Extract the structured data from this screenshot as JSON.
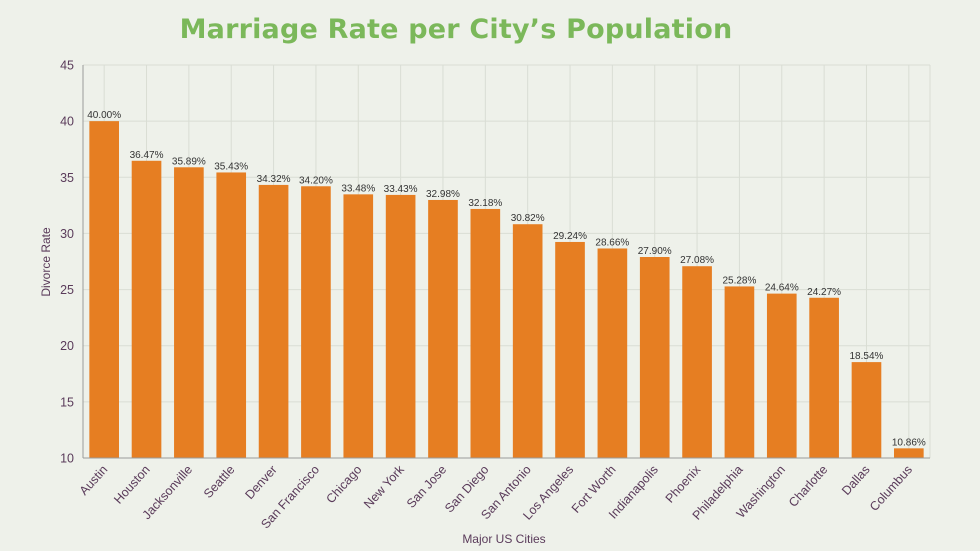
{
  "chart_data": {
    "type": "bar",
    "title": "Marriage Rate per City’s Population",
    "xlabel": "Major US Cities",
    "ylabel": "Divorce Rate",
    "ylim": [
      10,
      45
    ],
    "yticks": [
      10,
      15,
      20,
      25,
      30,
      35,
      40,
      45
    ],
    "grid": true,
    "bar_color": "#e67e22",
    "title_color": "#7bb85a",
    "background": "#eef1ea",
    "categories": [
      "Austin",
      "Houston",
      "Jacksonville",
      "Seattle",
      "Denver",
      "San Francisco",
      "Chicago",
      "New York",
      "San Jose",
      "San Diego",
      "San Antonio",
      "Los Angeles",
      "Fort Worth",
      "Indianapolis",
      "Phoenix",
      "Philadelphia",
      "Washington",
      "Charlotte",
      "Dallas",
      "Columbus"
    ],
    "values": [
      40.0,
      36.47,
      35.89,
      35.43,
      34.32,
      34.2,
      33.48,
      33.43,
      32.98,
      32.18,
      30.82,
      29.24,
      28.66,
      27.9,
      27.08,
      25.28,
      24.64,
      24.27,
      18.54,
      10.86
    ],
    "data_labels": [
      "40.00%",
      "36.47%",
      "35.89%",
      "35.43%",
      "34.32%",
      "34.20%",
      "33.48%",
      "33.43%",
      "32.98%",
      "32.18%",
      "30.82%",
      "29.24%",
      "28.66%",
      "27.90%",
      "27.08%",
      "25.28%",
      "24.64%",
      "24.27%",
      "18.54%",
      "10.86%"
    ]
  }
}
